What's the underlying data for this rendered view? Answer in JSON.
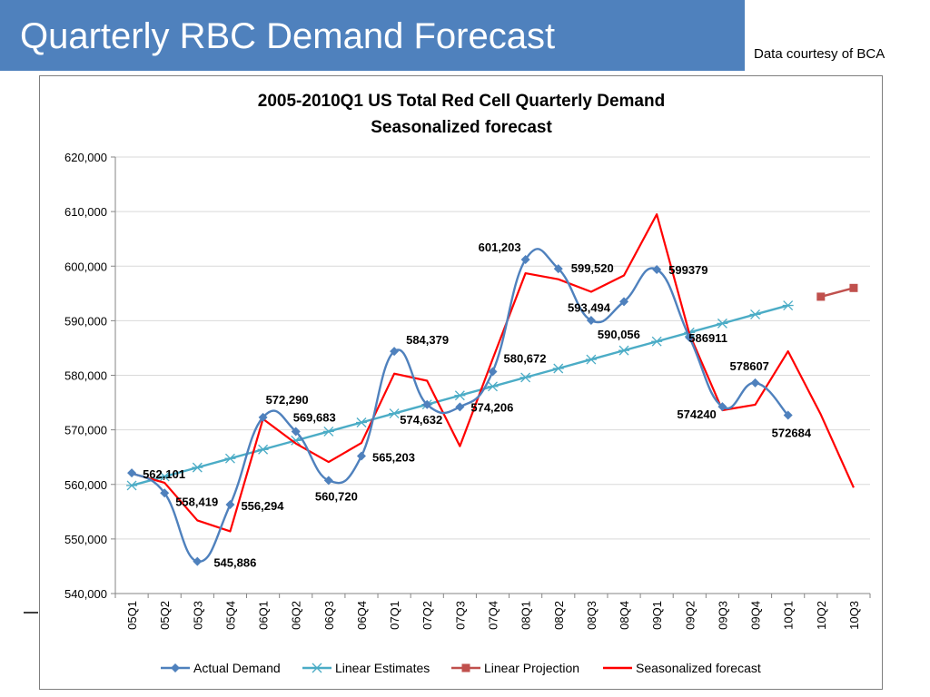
{
  "slide": {
    "title": "Quarterly RBC Demand Forecast",
    "credit": "Data courtesy of BCA"
  },
  "colors": {
    "banner": "#4f81bd",
    "actual": "#4f81bd",
    "linear_estimates": "#4bacc6",
    "linear_projection": "#c0504d",
    "seasonalized": "#ff0000"
  },
  "chart_data": {
    "type": "line",
    "title": "2005-2010Q1 US Total Red Cell Quarterly Demand",
    "subtitle": "Seasonalized forecast",
    "categories": [
      "05Q1",
      "05Q2",
      "05Q3",
      "05Q4",
      "06Q1",
      "06Q2",
      "06Q3",
      "06Q4",
      "07Q1",
      "07Q2",
      "07Q3",
      "07Q4",
      "08Q1",
      "08Q2",
      "08Q3",
      "08Q4",
      "09Q1",
      "09Q2",
      "09Q3",
      "09Q4",
      "10Q1",
      "10Q2",
      "10Q3"
    ],
    "ylim": [
      540000,
      620000
    ],
    "yticks": [
      540000,
      550000,
      560000,
      570000,
      580000,
      590000,
      600000,
      610000,
      620000
    ],
    "ytick_labels": [
      "540,000",
      "550,000",
      "560,000",
      "570,000",
      "580,000",
      "590,000",
      "600,000",
      "610,000",
      "620,000"
    ],
    "grid": true,
    "legend_position": "bottom",
    "series": [
      {
        "name": "Actual Demand",
        "color_key": "actual",
        "marker": "diamond",
        "smooth": true,
        "values": [
          562101,
          558419,
          545886,
          556294,
          572290,
          569683,
          560720,
          565203,
          584379,
          574632,
          574206,
          580672,
          601203,
          599520,
          590056,
          593494,
          599379,
          586911,
          574240,
          578607,
          572684,
          null,
          null
        ],
        "labels": [
          "562,101",
          "558,419",
          "545,886",
          "556,294",
          "572,290",
          "569,683",
          "560,720",
          "565,203",
          "584,379",
          "574,632",
          "574,206",
          "580,672",
          "601,203",
          "599,520",
          "590,056",
          "593,494",
          "599379",
          "586911",
          "574240",
          "578607",
          "572684",
          null,
          null
        ]
      },
      {
        "name": "Linear Estimates",
        "color_key": "linear_estimates",
        "marker": "asterisk",
        "smooth": false,
        "values": [
          559800,
          561450,
          563100,
          564750,
          566400,
          568050,
          569700,
          571350,
          573000,
          574650,
          576300,
          577950,
          579600,
          581250,
          582900,
          584550,
          586200,
          587850,
          589500,
          591150,
          592800,
          null,
          null
        ]
      },
      {
        "name": "Linear Projection",
        "color_key": "linear_projection",
        "marker": "square",
        "smooth": false,
        "values": [
          null,
          null,
          null,
          null,
          null,
          null,
          null,
          null,
          null,
          null,
          null,
          null,
          null,
          null,
          null,
          null,
          null,
          null,
          null,
          null,
          null,
          594400,
          596000
        ]
      },
      {
        "name": "Seasonalized forecast",
        "color_key": "seasonalized",
        "marker": "none",
        "smooth": false,
        "values": [
          562000,
          560300,
          553400,
          551400,
          572000,
          567500,
          564100,
          567600,
          580300,
          579000,
          567000,
          583000,
          598700,
          597600,
          595300,
          598300,
          609500,
          587500,
          573600,
          574600,
          584400,
          572800,
          559400
        ]
      }
    ]
  }
}
